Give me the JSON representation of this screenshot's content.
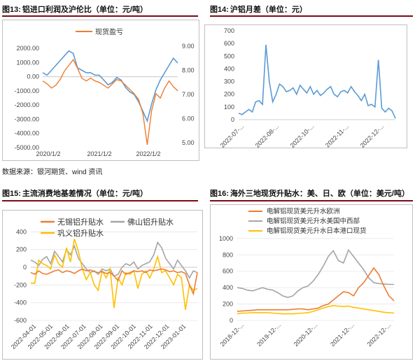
{
  "source_note": "数据来源：银河期货、wind 资讯",
  "figures": [
    {
      "fig_label": "图13:",
      "title": "铝进口利润及沪伦比（单位：元/吨）"
    },
    {
      "fig_label": "图14:",
      "title": "沪铝月差（单位：元）"
    },
    {
      "fig_label": "图15:",
      "title": "主流消费地基差情况（单位：元/吨）"
    },
    {
      "fig_label": "图16:",
      "title": "海外三地现货升贴水：美、日、欧（单位：美元/吨）"
    }
  ],
  "chart_data": [
    {
      "type": "line",
      "title": "",
      "y_left_ticks": [
        "2000.00",
        "1000.00",
        "0.00",
        "-1000.00",
        "-2000.00",
        "-3000.00",
        "-4000.00",
        "-5000.00"
      ],
      "ylim": [
        -5000,
        2500
      ],
      "y_right_ticks": [
        "9.00",
        "8.00",
        "7.00",
        "6.00",
        "5.00"
      ],
      "ylim_right": [
        4.8,
        9.2
      ],
      "x_ticks": [
        "2020/1/2",
        "2021/1/2",
        "2022/1/2"
      ],
      "legend_position": "top-center",
      "colors": {
        "profit": "#ed7d31",
        "ratio": "#5b9bd5"
      },
      "series": [
        {
          "name": "现货盈亏",
          "axis": "left",
          "values": [
            -300,
            -500,
            -800,
            -600,
            -200,
            400,
            800,
            1200,
            600,
            -100,
            -300,
            -100,
            -300,
            -400,
            -600,
            -800,
            -500,
            -200,
            -300,
            -600,
            -900,
            -1200,
            -1600,
            -2600,
            -4800,
            -2400,
            -1200,
            -1500,
            -800,
            -300,
            -700,
            -1000
          ]
        },
        {
          "name": "",
          "axis": "right",
          "values": [
            7.9,
            7.8,
            8.0,
            8.2,
            8.4,
            8.6,
            8.8,
            8.7,
            8.1,
            8.0,
            7.9,
            7.9,
            7.8,
            7.8,
            7.6,
            7.4,
            7.5,
            7.7,
            7.6,
            7.3,
            7.1,
            7.0,
            6.7,
            6.3,
            5.9,
            6.6,
            7.2,
            7.6,
            7.9,
            8.2,
            8.5,
            8.3
          ]
        }
      ]
    },
    {
      "type": "line",
      "title": "",
      "y_ticks": [
        "700",
        "600",
        "500",
        "400",
        "300",
        "200",
        "100",
        "0"
      ],
      "ylim": [
        0,
        700
      ],
      "x_ticks": [
        "2022-07-...",
        "2022-08-...",
        "2022-10-...",
        "2022-11-...",
        "2022-12-..."
      ],
      "colors": {
        "line": "#5b9bd5"
      },
      "series": [
        {
          "name": "",
          "values": [
            50,
            40,
            60,
            80,
            60,
            140,
            150,
            120,
            590,
            300,
            140,
            200,
            280,
            260,
            220,
            230,
            250,
            200,
            270,
            240,
            210,
            260,
            200,
            230,
            190,
            210,
            240,
            260,
            200,
            180,
            220,
            230,
            210,
            260,
            220,
            190,
            150,
            200,
            110,
            120,
            100,
            470,
            90,
            60,
            90,
            70,
            10
          ]
        }
      ]
    },
    {
      "type": "line",
      "title": "",
      "y_ticks": [
        "400",
        "200",
        "0",
        "-200",
        "-400",
        "-600"
      ],
      "ylim": [
        -600,
        450
      ],
      "x_ticks": [
        "2022-04-01",
        "2022-05-01",
        "2022-06-01",
        "2022-07-01",
        "2022-08-01",
        "2022-09-01",
        "2022-10-01",
        "2022-11-01",
        "2022-12-01",
        "2023-01-01"
      ],
      "legend_position": "top",
      "colors": {
        "无锡": "#ed7d31",
        "佛山": "#a5a5a5",
        "巩义": "#ffc000"
      },
      "series": [
        {
          "name": "无锡铝升贴水",
          "values": [
            -60,
            -80,
            -40,
            -70,
            -80,
            -60,
            -40,
            -30,
            -60,
            -40,
            -50,
            -70,
            -40,
            -20,
            -40,
            -30,
            -50,
            -60,
            -50,
            -70,
            -60,
            -100,
            -150,
            -40,
            -80,
            -60,
            -40,
            -50,
            -40,
            -60,
            -30,
            -40,
            -30,
            -20,
            -30,
            -50,
            -40,
            -60,
            -50,
            -70,
            -200,
            -300,
            -60
          ]
        },
        {
          "name": "佛山铝升贴水",
          "values": [
            80,
            60,
            20,
            90,
            120,
            40,
            180,
            120,
            60,
            200,
            140,
            240,
            100,
            40,
            -20,
            -60,
            -40,
            -80,
            -20,
            -40,
            -20,
            -100,
            -80,
            0,
            40,
            20,
            60,
            -20,
            20,
            40,
            60,
            140,
            280,
            220,
            100,
            40,
            -20,
            80,
            20,
            -40,
            -120,
            -40,
            -60
          ]
        },
        {
          "name": "巩义铝升贴水",
          "values": [
            -180,
            -180,
            80,
            40,
            20,
            -20,
            140,
            40,
            0,
            220,
            60,
            320,
            180,
            -20,
            -140,
            -60,
            -200,
            -260,
            -40,
            -120,
            -20,
            -460,
            -120,
            -200,
            -60,
            -80,
            -40,
            -240,
            -80,
            -40,
            -120,
            -20,
            120,
            -60,
            -40,
            -120,
            -200,
            -80,
            -120,
            -480,
            -200,
            -260,
            -240
          ]
        }
      ]
    },
    {
      "type": "line",
      "title": "",
      "y_ticks": [
        "1000",
        "800",
        "600",
        "400",
        "200",
        "0"
      ],
      "ylim": [
        0,
        1050
      ],
      "x_ticks": [
        "2018-12-...",
        "2019-12-...",
        "2020-12-...",
        "2021-12-...",
        "2022-12-..."
      ],
      "legend_position": "top",
      "colors": {
        "欧洲": "#ed7d31",
        "美国中西部": "#a5a5a5",
        "日本港口": "#ffc000"
      },
      "series": [
        {
          "name": "电解铝现货美元升水欧洲",
          "values": [
            110,
            115,
            120,
            125,
            130,
            130,
            130,
            130,
            130,
            130,
            130,
            135,
            140,
            140,
            130,
            140,
            150,
            180,
            200,
            250,
            300,
            350,
            340,
            300,
            400,
            460,
            550,
            640,
            560,
            420,
            300,
            240
          ]
        },
        {
          "name": "电解铝现货美元升水美国中西部",
          "values": [
            400,
            390,
            370,
            360,
            380,
            400,
            380,
            370,
            340,
            300,
            280,
            300,
            360,
            400,
            420,
            480,
            560,
            660,
            780,
            850,
            730,
            700,
            860,
            780,
            700,
            620,
            520,
            460,
            450,
            445,
            440,
            440
          ]
        },
        {
          "name": "电解铝现货美元升水日本港口现货",
          "values": [
            80,
            90,
            90,
            95,
            95,
            95,
            95,
            90,
            85,
            80,
            80,
            80,
            85,
            90,
            95,
            110,
            130,
            150,
            170,
            180,
            175,
            170,
            175,
            160,
            150,
            140,
            130,
            120,
            110,
            100,
            95,
            90
          ]
        }
      ]
    }
  ]
}
